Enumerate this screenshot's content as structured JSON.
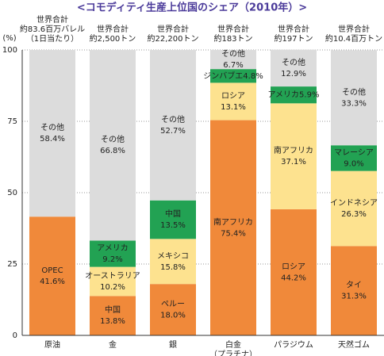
{
  "chart_data": {
    "type": "stacked-bar",
    "title": "<コモディティ生産上位国のシェア（2010年）>",
    "ylabel": "(%)",
    "ylim": [
      0,
      100
    ],
    "yticks": [
      0,
      25,
      50,
      75,
      100
    ],
    "grid": true,
    "categories": [
      [
        "原油"
      ],
      [
        "金"
      ],
      [
        "銀"
      ],
      [
        "白金",
        "（プラチナ）"
      ],
      [
        "パラジウム"
      ],
      [
        "天然ゴム"
      ]
    ],
    "totals": [
      [
        "世界合計",
        "約83.6百万バレル",
        "（1日当たり）"
      ],
      [
        "世界合計",
        "約2,500トン"
      ],
      [
        "世界合計",
        "約22,200トン"
      ],
      [
        "世界合計",
        "約183トン"
      ],
      [
        "世界合計",
        "約197トン"
      ],
      [
        "世界合計",
        "約10.4百万トン"
      ]
    ],
    "stacks": [
      {
        "segments": [
          {
            "name": "OPEC",
            "value": 41.6,
            "value_label": "41.6%",
            "color": "#f0893a"
          },
          {
            "name": "その他",
            "value": 58.4,
            "value_label": "58.4%",
            "color": "#dcdcdc"
          }
        ]
      },
      {
        "segments": [
          {
            "name": "中国",
            "value": 13.8,
            "value_label": "13.8%",
            "color": "#f0893a"
          },
          {
            "name": "オーストラリア",
            "value": 10.2,
            "value_label": "10.2%",
            "color": "#fde28f"
          },
          {
            "name": "アメリカ",
            "value": 9.2,
            "value_label": "9.2%",
            "color": "#22a253"
          },
          {
            "name": "その他",
            "value": 66.8,
            "value_label": "66.8%",
            "color": "#dcdcdc"
          }
        ]
      },
      {
        "segments": [
          {
            "name": "ペルー",
            "value": 18.0,
            "value_label": "18.0%",
            "color": "#f0893a"
          },
          {
            "name": "メキシコ",
            "value": 15.8,
            "value_label": "15.8%",
            "color": "#fde28f"
          },
          {
            "name": "中国",
            "value": 13.5,
            "value_label": "13.5%",
            "color": "#22a253"
          },
          {
            "name": "その他",
            "value": 52.7,
            "value_label": "52.7%",
            "color": "#dcdcdc"
          }
        ]
      },
      {
        "segments": [
          {
            "name": "南アフリカ",
            "value": 75.4,
            "value_label": "75.4%",
            "color": "#f0893a"
          },
          {
            "name": "ロシア",
            "value": 13.1,
            "value_label": "13.1%",
            "color": "#fde28f"
          },
          {
            "name": "ジンバブエ",
            "value": 4.8,
            "value_label": "4.8%",
            "color": "#22a253"
          },
          {
            "name": "その他",
            "value": 6.7,
            "value_label": "6.7%",
            "color": "#dcdcdc"
          }
        ]
      },
      {
        "segments": [
          {
            "name": "ロシア",
            "value": 44.2,
            "value_label": "44.2%",
            "color": "#f0893a"
          },
          {
            "name": "南アフリカ",
            "value": 37.1,
            "value_label": "37.1%",
            "color": "#fde28f"
          },
          {
            "name": "アメリカ",
            "value": 5.9,
            "value_label": "5.9%",
            "color": "#22a253"
          },
          {
            "name": "その他",
            "value": 12.9,
            "value_label": "12.9%",
            "color": "#dcdcdc"
          }
        ]
      },
      {
        "segments": [
          {
            "name": "タイ",
            "value": 31.3,
            "value_label": "31.3%",
            "color": "#f0893a"
          },
          {
            "name": "インドネシア",
            "value": 26.3,
            "value_label": "26.3%",
            "color": "#fde28f"
          },
          {
            "name": "マレーシア",
            "value": 9.0,
            "value_label": "9.0%",
            "color": "#22a253"
          },
          {
            "name": "その他",
            "value": 33.3,
            "value_label": "33.3%",
            "color": "#dcdcdc"
          }
        ]
      }
    ]
  }
}
